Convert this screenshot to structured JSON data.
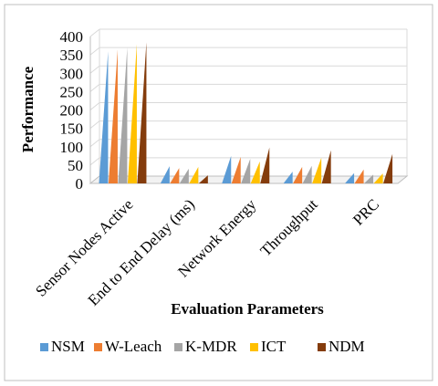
{
  "chart_data": {
    "type": "bar",
    "style": "3d-pyramid",
    "categories": [
      "Sensor Nodes Active",
      "End to End Delay (ms)",
      "Network Energy",
      "Throughput",
      "PRC"
    ],
    "series": [
      {
        "name": "NSM",
        "color": "#5B9BD5",
        "values": [
          350,
          37,
          65,
          22,
          18
        ]
      },
      {
        "name": "W-Leach",
        "color": "#ED7D31",
        "values": [
          355,
          32,
          62,
          35,
          28
        ]
      },
      {
        "name": "K-MDR",
        "color": "#A5A5A5",
        "values": [
          360,
          30,
          57,
          38,
          14
        ]
      },
      {
        "name": "ICT",
        "color": "#FFC000",
        "values": [
          370,
          35,
          50,
          60,
          17
        ]
      },
      {
        "name": "NDM",
        "color": "#843C0C",
        "values": [
          375,
          12,
          88,
          80,
          70
        ]
      }
    ],
    "yticks": [
      0,
      50,
      100,
      150,
      200,
      250,
      300,
      350,
      400
    ],
    "ylim": [
      0,
      400
    ],
    "xlabel": "Evaluation Parameters",
    "ylabel": "Performance",
    "grid": true,
    "legend_position": "bottom"
  }
}
